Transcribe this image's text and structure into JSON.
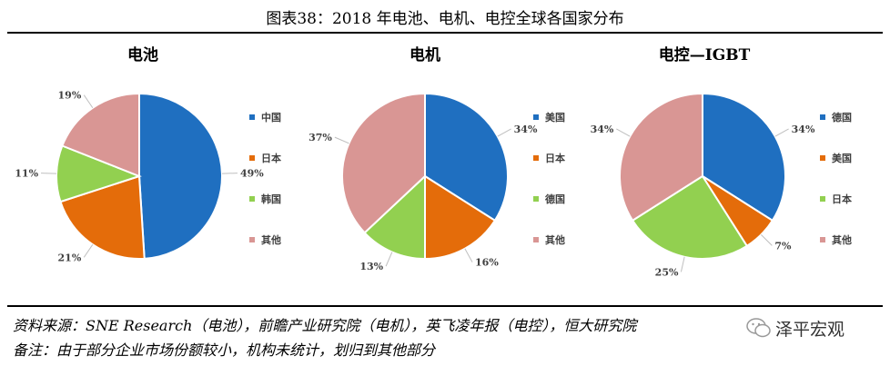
{
  "figure": {
    "title": "图表38：2018 年电池、电机、电控全球各国家分布",
    "source": "资料来源：SNE Research（电池），前瞻产业研究院（电机），英飞凌年报（电控），恒大研究院",
    "note": "备注：由于部分企业市场份额较小，机构未统计，划归到其他部分",
    "watermark": "泽平宏观"
  },
  "colors": {
    "blue": "#1f6fc0",
    "orange": "#e46c0a",
    "green": "#92d050",
    "pink": "#d99694"
  },
  "chart_data": [
    {
      "type": "pie",
      "title": "电池",
      "slices": [
        {
          "name": "中国",
          "value": 49,
          "label": "49%",
          "color": "#1f6fc0"
        },
        {
          "name": "日本",
          "value": 21,
          "label": "21%",
          "color": "#e46c0a"
        },
        {
          "name": "韩国",
          "value": 11,
          "label": "11%",
          "color": "#92d050"
        },
        {
          "name": "其他",
          "value": 19,
          "label": "19%",
          "color": "#d99694"
        }
      ],
      "legend_position": "right"
    },
    {
      "type": "pie",
      "title": "电机",
      "slices": [
        {
          "name": "美国",
          "value": 34,
          "label": "34%",
          "color": "#1f6fc0"
        },
        {
          "name": "日本",
          "value": 16,
          "label": "16%",
          "color": "#e46c0a"
        },
        {
          "name": "德国",
          "value": 13,
          "label": "13%",
          "color": "#92d050"
        },
        {
          "name": "其他",
          "value": 37,
          "label": "37%",
          "color": "#d99694"
        }
      ],
      "legend_position": "right"
    },
    {
      "type": "pie",
      "title": "电控—IGBT",
      "slices": [
        {
          "name": "德国",
          "value": 34,
          "label": "34%",
          "color": "#1f6fc0"
        },
        {
          "name": "美国",
          "value": 7,
          "label": "7%",
          "color": "#e46c0a"
        },
        {
          "name": "日本",
          "value": 25,
          "label": "25%",
          "color": "#92d050"
        },
        {
          "name": "其他",
          "value": 34,
          "label": "34%",
          "color": "#d99694"
        }
      ],
      "legend_position": "right"
    }
  ]
}
